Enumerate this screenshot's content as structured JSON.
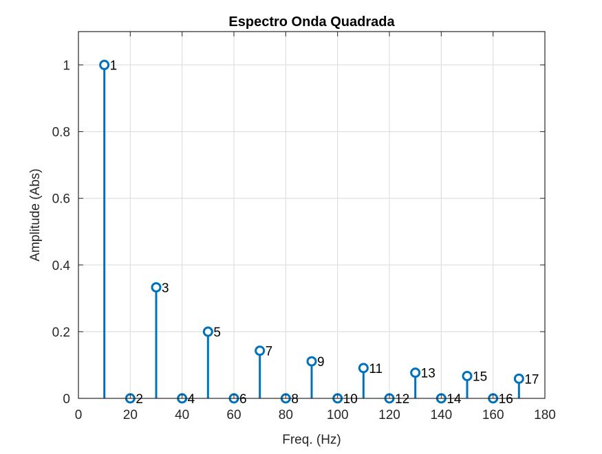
{
  "chart_data": {
    "type": "stem",
    "title": "Espectro Onda Quadrada",
    "xlabel": "Freq. (Hz)",
    "ylabel": "Amplitude (Abs)",
    "xlim": [
      0,
      180
    ],
    "ylim": [
      0,
      1.1
    ],
    "xticks": [
      "0",
      "20",
      "40",
      "60",
      "80",
      "100",
      "120",
      "140",
      "160",
      "180"
    ],
    "yticks": [
      "0",
      "0.2",
      "0.4",
      "0.6",
      "0.8",
      "1"
    ],
    "grid": true,
    "series_color": "#0072BD",
    "points": [
      {
        "x": 10,
        "y": 1.0,
        "label": "1"
      },
      {
        "x": 20,
        "y": 0.0,
        "label": "2"
      },
      {
        "x": 30,
        "y": 0.333,
        "label": "3"
      },
      {
        "x": 40,
        "y": 0.0,
        "label": "4"
      },
      {
        "x": 50,
        "y": 0.2,
        "label": "5"
      },
      {
        "x": 60,
        "y": 0.0,
        "label": "6"
      },
      {
        "x": 70,
        "y": 0.143,
        "label": "7"
      },
      {
        "x": 80,
        "y": 0.0,
        "label": "8"
      },
      {
        "x": 90,
        "y": 0.111,
        "label": "9"
      },
      {
        "x": 100,
        "y": 0.0,
        "label": "10"
      },
      {
        "x": 110,
        "y": 0.091,
        "label": "11"
      },
      {
        "x": 120,
        "y": 0.0,
        "label": "12"
      },
      {
        "x": 130,
        "y": 0.077,
        "label": "13"
      },
      {
        "x": 140,
        "y": 0.0,
        "label": "14"
      },
      {
        "x": 150,
        "y": 0.067,
        "label": "15"
      },
      {
        "x": 160,
        "y": 0.0,
        "label": "16"
      },
      {
        "x": 170,
        "y": 0.059,
        "label": "17"
      }
    ]
  }
}
